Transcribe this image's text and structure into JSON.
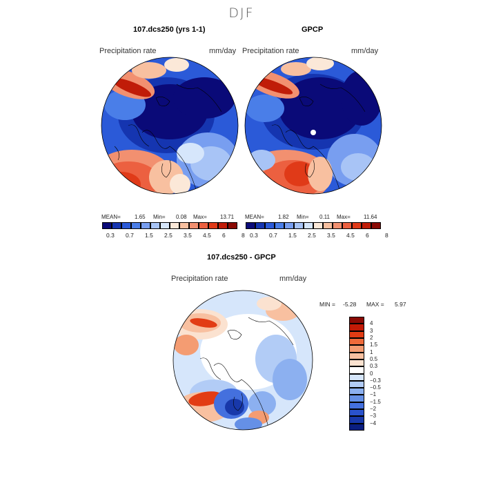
{
  "page": {
    "season": "DJF"
  },
  "panels": [
    {
      "id": "model",
      "title": "107.dcs250 (yrs 1-1)",
      "variable": "Precipitation rate",
      "units": "mm/day",
      "stats": {
        "mean_label": "MEAN=",
        "mean": "1.65",
        "min_label": "Min=",
        "min": "0.08",
        "max_label": "Max=",
        "max": "13.71"
      }
    },
    {
      "id": "obs",
      "title": "GPCP",
      "variable": "Precipitation rate",
      "units": "mm/day",
      "stats": {
        "mean_label": "MEAN=",
        "mean": "1.82",
        "min_label": "Min=",
        "min": "0.11",
        "max_label": "Max=",
        "max": "11.64"
      }
    },
    {
      "id": "diff",
      "title": "107.dcs250 - GPCP",
      "variable": "Precipitation rate",
      "units": "mm/day",
      "stats": {
        "min_label": "MIN =",
        "min": "-5.28",
        "max_label": "MAX =",
        "max": "5.97"
      }
    }
  ],
  "colorbar_abs": {
    "colors": [
      "#0a0a78",
      "#1535b0",
      "#2b5ad8",
      "#4a7ee8",
      "#789ef0",
      "#a8c4f6",
      "#d6e6fb",
      "#fbe8d8",
      "#f8c0a0",
      "#f29070",
      "#ec6040",
      "#e03a18",
      "#c01c08",
      "#8a0a04"
    ],
    "ticks": [
      "0.3",
      "0.7",
      "1.5",
      "2.5",
      "3.5",
      "4.5",
      "6",
      "8"
    ]
  },
  "colorbar_diff": {
    "colors": [
      "#8a0a04",
      "#c21a06",
      "#e23c14",
      "#ef6a3a",
      "#f49c72",
      "#f8c0a0",
      "#fbe2d0",
      "#ffffff",
      "#d6e6fb",
      "#b2ccf6",
      "#8cb0f0",
      "#6590e6",
      "#4470de",
      "#2a52cc",
      "#1838aa",
      "#0a1e80"
    ],
    "ticks": [
      "4",
      "3",
      "2",
      "1.5",
      "1",
      "0.5",
      "0.3",
      "0",
      "−0.3",
      "−0.5",
      "−1",
      "−1.5",
      "−2",
      "−3",
      "−4"
    ]
  }
}
